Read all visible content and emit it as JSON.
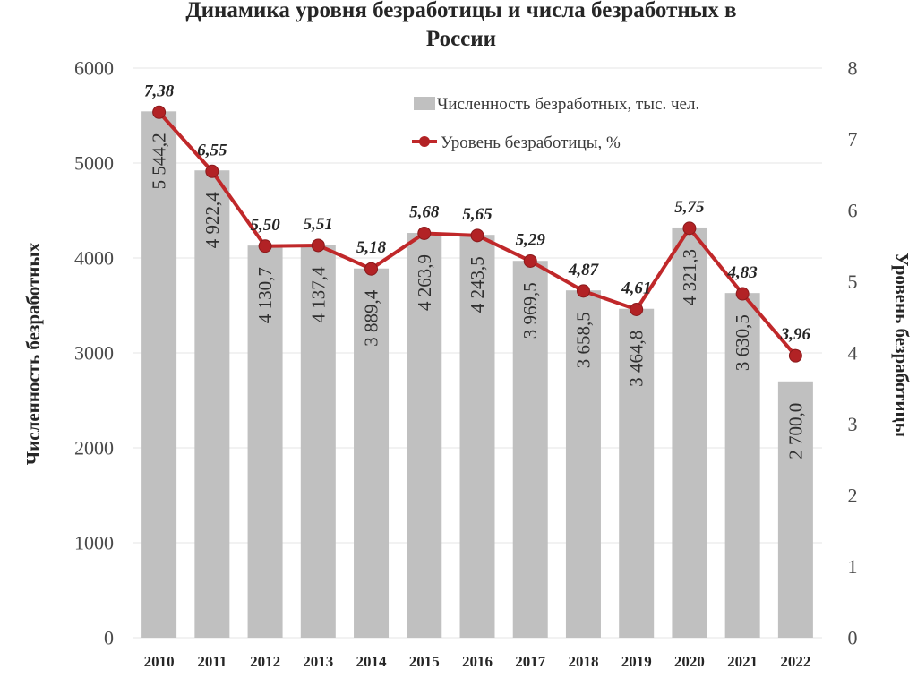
{
  "chart_data": {
    "type": "bar",
    "title_line1": "Динамика уровня безработицы и числа безработных в",
    "title_line2": "России",
    "ylabel_left": "Численность безработных",
    "ylabel_right": "Уровень безработицы",
    "ylim_left": [
      0,
      6000
    ],
    "ylim_right": [
      0,
      8
    ],
    "yticks_left": [
      "0",
      "1000",
      "2000",
      "3000",
      "4000",
      "5000",
      "6000"
    ],
    "yticks_right": [
      "0",
      "1",
      "2",
      "3",
      "4",
      "5",
      "6",
      "7",
      "8"
    ],
    "grid": true,
    "legend_position": "top-right",
    "categories": [
      "2010",
      "2011",
      "2012",
      "2013",
      "2014",
      "2015",
      "2016",
      "2017",
      "2018",
      "2019",
      "2020",
      "2021",
      "2022"
    ],
    "series": [
      {
        "name": "Численность безработных, тыс. чел.",
        "type": "bar",
        "axis": "left",
        "color": "#c0c0c0",
        "values": [
          5544.2,
          4922.4,
          4130.7,
          4137.4,
          3889.4,
          4263.9,
          4243.5,
          3969.5,
          3658.5,
          3464.8,
          4321.3,
          3630.5,
          2700.0
        ],
        "labels": [
          "5 544,2",
          "4 922,4",
          "4 130,7",
          "4 137,4",
          "3 889,4",
          "4 263,9",
          "4 243,5",
          "3 969,5",
          "3 658,5",
          "3 464,8",
          "4 321,3",
          "3 630,5",
          "2 700,0"
        ]
      },
      {
        "name": "Уровень безработицы, %",
        "type": "line",
        "axis": "right",
        "color": "#c0282a",
        "values": [
          7.38,
          6.55,
          5.5,
          5.51,
          5.18,
          5.68,
          5.65,
          5.29,
          4.87,
          4.61,
          5.75,
          4.83,
          3.96
        ],
        "labels": [
          "7,38",
          "6,55",
          "5,50",
          "5,51",
          "5,18",
          "5,68",
          "5,65",
          "5,29",
          "4,87",
          "4,61",
          "5,75",
          "4,83",
          "3,96"
        ]
      }
    ]
  }
}
